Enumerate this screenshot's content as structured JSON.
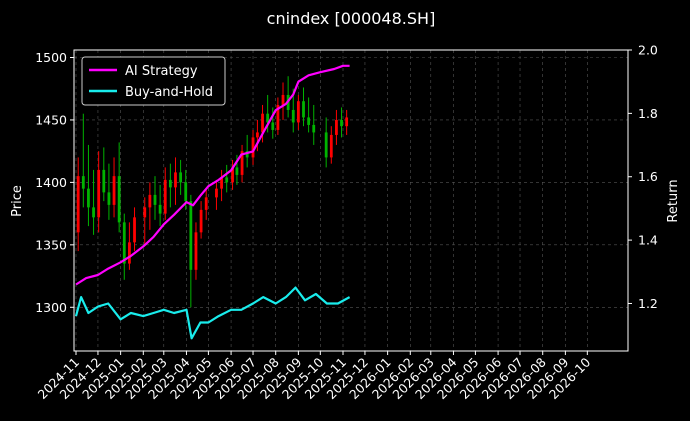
{
  "chart_data": {
    "type": "line",
    "title": "cnindex [000048.SH]",
    "ylabel_left": "Price",
    "ylabel_right": "Return",
    "ylim_left": [
      1265,
      1506
    ],
    "ylim_right": [
      1.05,
      2.0
    ],
    "left_yticks": [
      1300,
      1350,
      1400,
      1450,
      1500
    ],
    "right_yticks": [
      1.2,
      1.4,
      1.6,
      1.8,
      2.0
    ],
    "xticks": [
      "2024-11",
      "2024-12",
      "2025-01",
      "2025-02",
      "2025-03",
      "2025-04",
      "2025-05",
      "2025-06",
      "2025-07",
      "2025-08",
      "2025-09",
      "2025-10",
      "2025-11",
      "2025-12",
      "2026-01",
      "2026-02",
      "2026-03",
      "2026-04",
      "2026-05",
      "2026-06",
      "2026-07",
      "2026-08",
      "2026-09",
      "2026-10"
    ],
    "grid": true,
    "legend_position": "upper-left",
    "colors": {
      "background": "#000000",
      "ai": "#ff00ff",
      "bh": "#19ecec",
      "up": "#ff0000",
      "down": "#00b400",
      "grid": "#555555"
    },
    "price_ohlc_weekly": [
      [
        "2024-11-04",
        1360,
        1420,
        1345,
        1405
      ],
      [
        "2024-11-11",
        1405,
        1455,
        1380,
        1395
      ],
      [
        "2024-11-18",
        1395,
        1430,
        1365,
        1380
      ],
      [
        "2024-11-25",
        1380,
        1410,
        1358,
        1372
      ],
      [
        "2024-12-02",
        1372,
        1425,
        1360,
        1410
      ],
      [
        "2024-12-09",
        1410,
        1428,
        1385,
        1392
      ],
      [
        "2024-12-16",
        1392,
        1415,
        1370,
        1382
      ],
      [
        "2024-12-23",
        1382,
        1420,
        1372,
        1405
      ],
      [
        "2024-12-30",
        1405,
        1432,
        1360,
        1368
      ],
      [
        "2025-01-06",
        1368,
        1375,
        1322,
        1335
      ],
      [
        "2025-01-13",
        1335,
        1368,
        1330,
        1352
      ],
      [
        "2025-01-20",
        1352,
        1380,
        1345,
        1372
      ],
      [
        "2025-02-03",
        1372,
        1388,
        1350,
        1380
      ],
      [
        "2025-02-10",
        1380,
        1400,
        1362,
        1390
      ],
      [
        "2025-02-17",
        1390,
        1405,
        1370,
        1382
      ],
      [
        "2025-02-24",
        1382,
        1398,
        1365,
        1375
      ],
      [
        "2025-03-03",
        1375,
        1412,
        1370,
        1402
      ],
      [
        "2025-03-10",
        1402,
        1415,
        1380,
        1396
      ],
      [
        "2025-03-17",
        1396,
        1420,
        1382,
        1408
      ],
      [
        "2025-03-24",
        1408,
        1418,
        1390,
        1400
      ],
      [
        "2025-03-31",
        1400,
        1410,
        1378,
        1385
      ],
      [
        "2025-04-07",
        1385,
        1390,
        1300,
        1330
      ],
      [
        "2025-04-14",
        1330,
        1368,
        1322,
        1360
      ],
      [
        "2025-04-21",
        1360,
        1385,
        1355,
        1378
      ],
      [
        "2025-04-28",
        1378,
        1395,
        1370,
        1388
      ],
      [
        "2025-05-12",
        1388,
        1402,
        1378,
        1395
      ],
      [
        "2025-05-19",
        1395,
        1410,
        1385,
        1404
      ],
      [
        "2025-05-26",
        1404,
        1414,
        1392,
        1400
      ],
      [
        "2025-06-03",
        1400,
        1418,
        1394,
        1412
      ],
      [
        "2025-06-09",
        1412,
        1422,
        1398,
        1406
      ],
      [
        "2025-06-16",
        1406,
        1430,
        1400,
        1425
      ],
      [
        "2025-06-23",
        1425,
        1438,
        1412,
        1420
      ],
      [
        "2025-07-01",
        1420,
        1442,
        1414,
        1436
      ],
      [
        "2025-07-07",
        1436,
        1450,
        1425,
        1440
      ],
      [
        "2025-07-14",
        1440,
        1462,
        1432,
        1455
      ],
      [
        "2025-07-21",
        1455,
        1470,
        1440,
        1448
      ],
      [
        "2025-07-28",
        1448,
        1460,
        1435,
        1442
      ],
      [
        "2025-08-04",
        1442,
        1468,
        1438,
        1462
      ],
      [
        "2025-08-11",
        1462,
        1480,
        1450,
        1470
      ],
      [
        "2025-08-18",
        1470,
        1485,
        1452,
        1458
      ],
      [
        "2025-08-25",
        1458,
        1475,
        1440,
        1448
      ],
      [
        "2025-09-01",
        1448,
        1470,
        1442,
        1465
      ],
      [
        "2025-09-08",
        1465,
        1476,
        1445,
        1452
      ],
      [
        "2025-09-15",
        1452,
        1468,
        1440,
        1446
      ],
      [
        "2025-09-22",
        1446,
        1462,
        1430,
        1440
      ],
      [
        "2025-10-09",
        1440,
        1452,
        1412,
        1420
      ],
      [
        "2025-10-16",
        1420,
        1445,
        1415,
        1438
      ],
      [
        "2025-10-23",
        1438,
        1458,
        1430,
        1450
      ],
      [
        "2025-10-30",
        1450,
        1460,
        1436,
        1445
      ],
      [
        "2025-11-06",
        1445,
        1458,
        1438,
        1452
      ]
    ],
    "series": [
      {
        "name": "AI Strategy",
        "axis": "right",
        "points": [
          [
            "2024-11-01",
            1.26
          ],
          [
            "2024-11-15",
            1.28
          ],
          [
            "2024-12-01",
            1.29
          ],
          [
            "2024-12-15",
            1.31
          ],
          [
            "2025-01-01",
            1.33
          ],
          [
            "2025-01-15",
            1.35
          ],
          [
            "2025-02-01",
            1.38
          ],
          [
            "2025-02-15",
            1.41
          ],
          [
            "2025-03-01",
            1.45
          ],
          [
            "2025-03-15",
            1.48
          ],
          [
            "2025-04-01",
            1.52
          ],
          [
            "2025-04-10",
            1.51
          ],
          [
            "2025-04-20",
            1.54
          ],
          [
            "2025-05-01",
            1.57
          ],
          [
            "2025-05-15",
            1.59
          ],
          [
            "2025-06-01",
            1.62
          ],
          [
            "2025-06-15",
            1.67
          ],
          [
            "2025-07-01",
            1.68
          ],
          [
            "2025-07-15",
            1.74
          ],
          [
            "2025-08-01",
            1.81
          ],
          [
            "2025-08-15",
            1.83
          ],
          [
            "2025-08-25",
            1.86
          ],
          [
            "2025-09-01",
            1.9
          ],
          [
            "2025-09-15",
            1.92
          ],
          [
            "2025-10-01",
            1.93
          ],
          [
            "2025-10-20",
            1.94
          ],
          [
            "2025-11-01",
            1.95
          ],
          [
            "2025-11-10",
            1.95
          ]
        ]
      },
      {
        "name": "Buy-and-Hold",
        "axis": "right",
        "points": [
          [
            "2024-11-01",
            1.16
          ],
          [
            "2024-11-08",
            1.22
          ],
          [
            "2024-11-18",
            1.17
          ],
          [
            "2024-12-01",
            1.19
          ],
          [
            "2024-12-15",
            1.2
          ],
          [
            "2025-01-01",
            1.15
          ],
          [
            "2025-01-15",
            1.17
          ],
          [
            "2025-02-01",
            1.16
          ],
          [
            "2025-02-15",
            1.17
          ],
          [
            "2025-03-01",
            1.18
          ],
          [
            "2025-03-15",
            1.17
          ],
          [
            "2025-04-01",
            1.18
          ],
          [
            "2025-04-08",
            1.09
          ],
          [
            "2025-04-20",
            1.14
          ],
          [
            "2025-05-01",
            1.14
          ],
          [
            "2025-05-15",
            1.16
          ],
          [
            "2025-06-01",
            1.18
          ],
          [
            "2025-06-15",
            1.18
          ],
          [
            "2025-07-01",
            1.2
          ],
          [
            "2025-07-15",
            1.22
          ],
          [
            "2025-08-01",
            1.2
          ],
          [
            "2025-08-15",
            1.22
          ],
          [
            "2025-08-28",
            1.25
          ],
          [
            "2025-09-10",
            1.21
          ],
          [
            "2025-09-25",
            1.23
          ],
          [
            "2025-10-10",
            1.2
          ],
          [
            "2025-10-25",
            1.2
          ],
          [
            "2025-11-10",
            1.22
          ]
        ]
      }
    ]
  }
}
